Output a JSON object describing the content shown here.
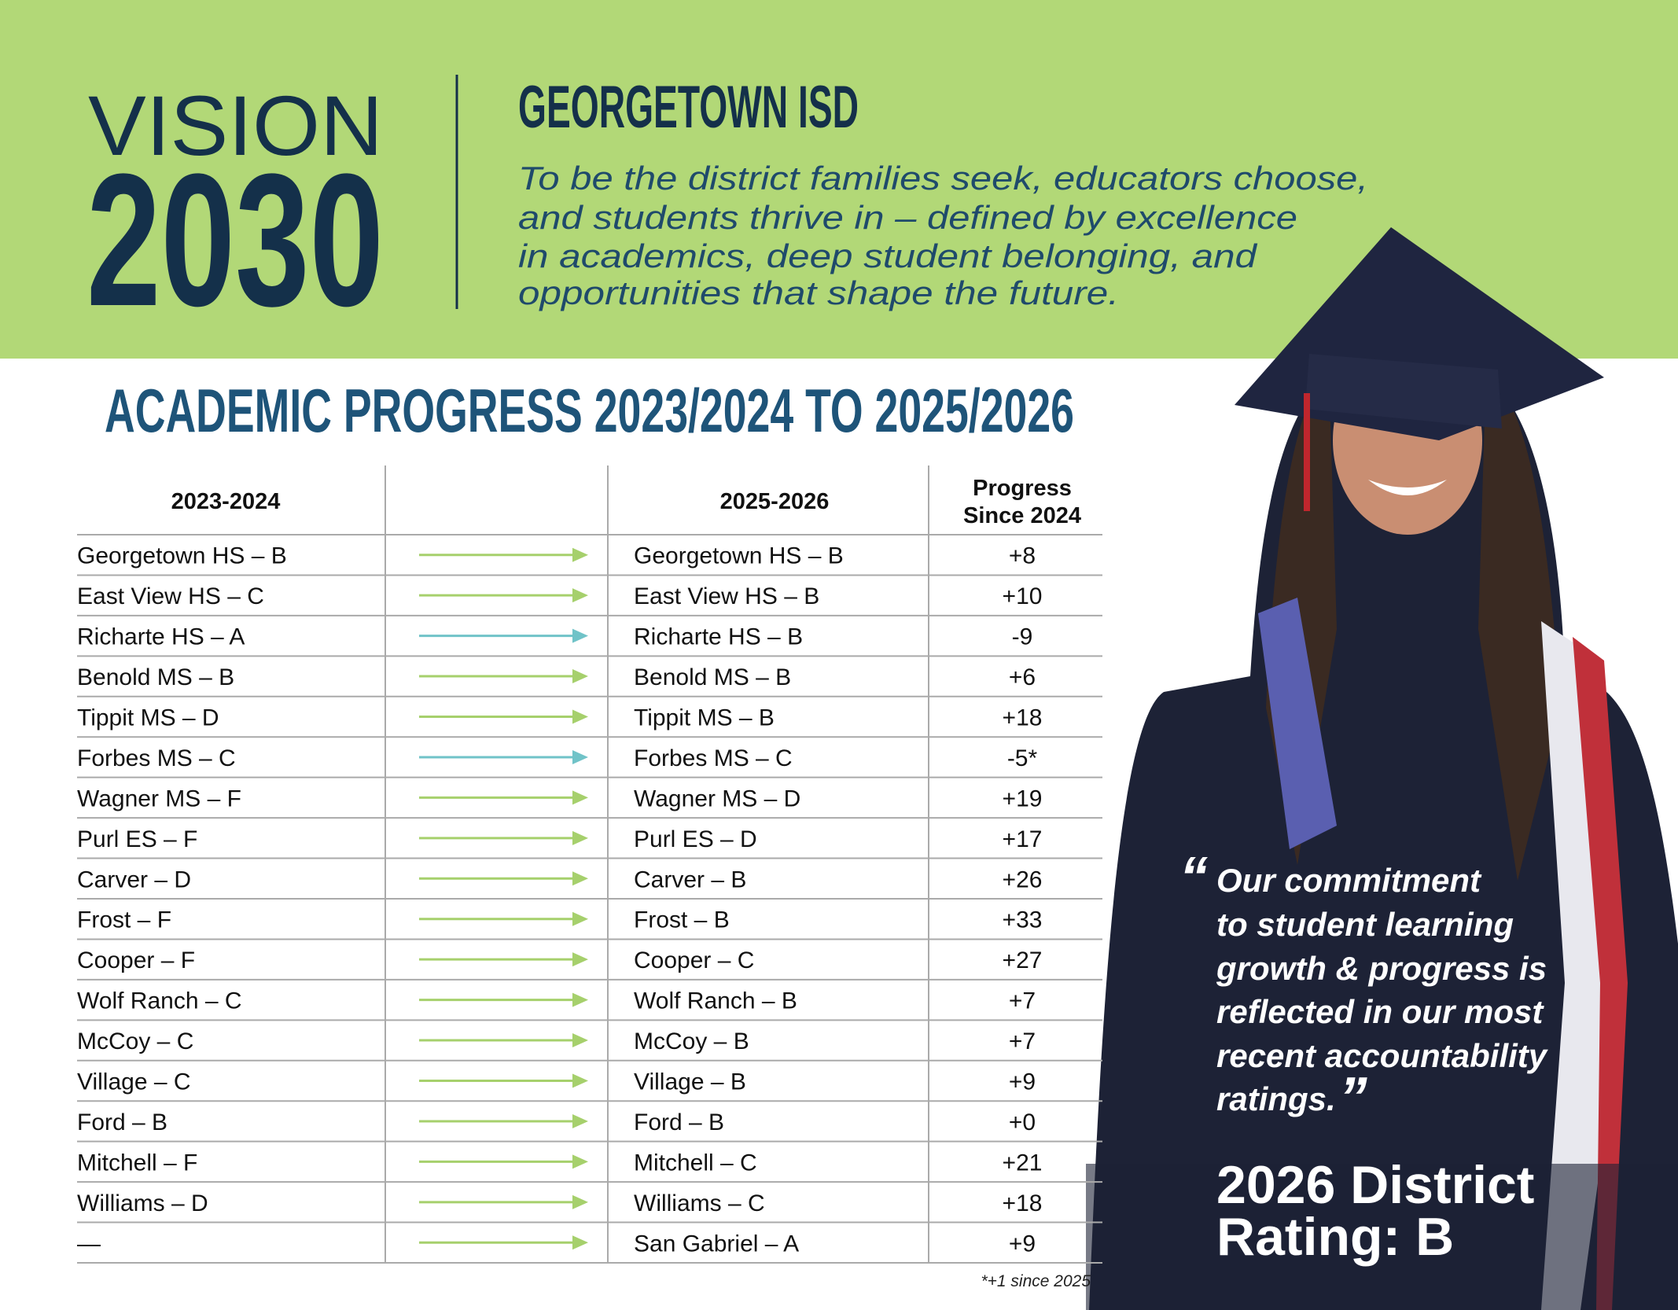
{
  "header": {
    "vision": "VISION",
    "year": "2030",
    "district": "GEORGETOWN ISD",
    "mission": [
      "To be the district families seek, educators choose,",
      "and students thrive in – defined by excellence",
      "in academics, deep student belonging, and",
      "opportunities that shape the future."
    ]
  },
  "section_title": "ACADEMIC PROGRESS 2023/2024 TO 2025/2026",
  "table": {
    "headers": {
      "before": "2023-2024",
      "after": "2025-2026",
      "progress": [
        "Progress",
        "Since 2024"
      ]
    },
    "rows": [
      [
        "Georgetown HS – B",
        "Georgetown HS – B",
        "+8"
      ],
      [
        "East View HS – C",
        "East View HS – B",
        "+10"
      ],
      [
        "Richarte HS – A",
        "Richarte HS – B",
        "-9"
      ],
      [
        "Benold MS – B",
        "Benold MS – B",
        "+6"
      ],
      [
        "Tippit MS – D",
        "Tippit MS – B",
        "+18"
      ],
      [
        "Forbes MS – C",
        "Forbes MS – C",
        "-5*"
      ],
      [
        "Wagner MS – F",
        "Wagner MS – D",
        "+19"
      ],
      [
        "Purl ES – F",
        "Purl ES – D",
        "+17"
      ],
      [
        "Carver – D",
        "Carver – B",
        "+26"
      ],
      [
        "Frost – F",
        "Frost – B",
        "+33"
      ],
      [
        "Cooper – F",
        "Cooper – C",
        "+27"
      ],
      [
        "Wolf Ranch – C",
        "Wolf Ranch – B",
        "+7"
      ],
      [
        "McCoy – C",
        "McCoy – B",
        "+7"
      ],
      [
        "Village – C",
        "Village – B",
        "+9"
      ],
      [
        "Ford – B",
        "Ford – B",
        "+0"
      ],
      [
        "Mitchell – F",
        "Mitchell – C",
        "+21"
      ],
      [
        "Williams – D",
        "Williams – C",
        "+18"
      ],
      [
        "—",
        "San Gabriel – A",
        "+9"
      ]
    ],
    "footnote": "*+1 since 2025"
  },
  "quote": {
    "open": "“",
    "lines": [
      "Our commitment",
      "to student learning",
      "growth & progress is",
      "reflected in our most",
      "recent accountability",
      "ratings."
    ],
    "close": "”"
  },
  "rating": [
    "2026 District",
    "Rating: B"
  ]
}
